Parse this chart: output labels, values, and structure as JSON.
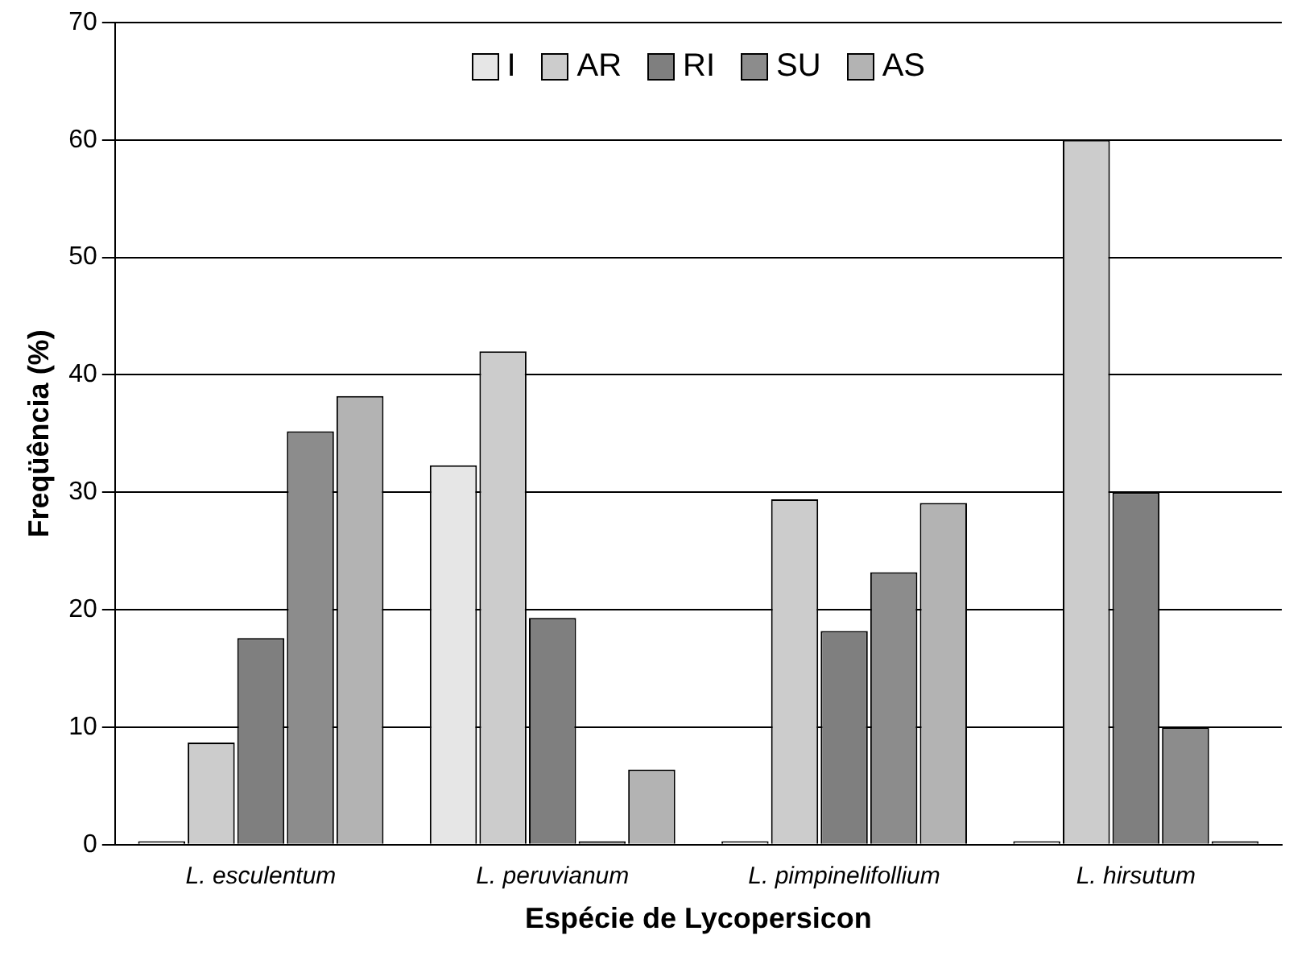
{
  "chart_data": {
    "type": "bar",
    "xlabel": "Espécie de Lycopersicon",
    "ylabel": "Freqüência (%)",
    "categories": [
      "L. esculentum",
      "L. peruvianum",
      "L. pimpinelifollium",
      "L. hirsutum"
    ],
    "series": [
      {
        "name": "I",
        "color": "#e6e6e6",
        "values": [
          0.3,
          32.3,
          0.3,
          0.3
        ]
      },
      {
        "name": "AR",
        "color": "#cccccc",
        "values": [
          8.7,
          42,
          29.4,
          60
        ]
      },
      {
        "name": "RI",
        "color": "#7f7f7f",
        "values": [
          17.6,
          19.3,
          18.2,
          30
        ]
      },
      {
        "name": "SU",
        "color": "#8c8c8c",
        "values": [
          35.2,
          0.3,
          23.2,
          10
        ]
      },
      {
        "name": "AS",
        "color": "#b3b3b3",
        "values": [
          38.2,
          6.4,
          29.1,
          0.3
        ]
      }
    ],
    "ylim": [
      0,
      70
    ],
    "yticks": [
      0,
      10,
      20,
      30,
      40,
      50,
      60,
      70
    ],
    "grid": "y",
    "legend": "top"
  }
}
